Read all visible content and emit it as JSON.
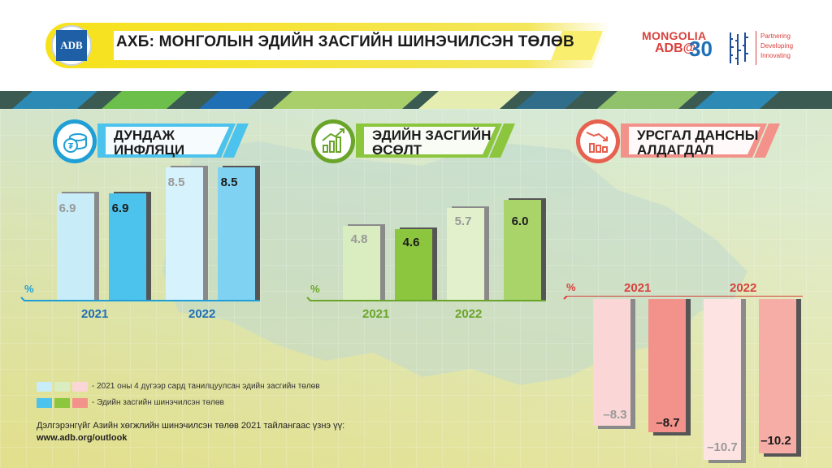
{
  "header": {
    "logo_text": "ADB",
    "title": "АХБ: МОНГОЛЫН ЭДИЙН ЗАСГИЙН ШИНЭЧИЛСЭН ТӨЛӨВ",
    "brand_mongolia": "MONGOLIA",
    "brand_adb": "ADB@",
    "brand_30": "30",
    "brand_tagline": [
      "Partnering",
      "Developing",
      "Innovating"
    ]
  },
  "sections": {
    "inflation": {
      "title_line1": "ДУНДАЖ",
      "title_line2": "ИНФЛЯЦИ",
      "icon": "coins-icon",
      "unit": "%",
      "years": [
        "2021",
        "2022"
      ],
      "values": [
        {
          "year": "2021",
          "april": "6.9",
          "updated": "6.9"
        },
        {
          "year": "2022",
          "april": "8.5",
          "updated": "8.5"
        }
      ]
    },
    "growth": {
      "title_line1": "ЭДИЙН ЗАСГИЙН",
      "title_line2": "ӨСӨЛТ",
      "icon": "growth-chart-icon",
      "unit": "%",
      "years": [
        "2021",
        "2022"
      ],
      "values": [
        {
          "year": "2021",
          "april": "4.8",
          "updated": "4.6"
        },
        {
          "year": "2022",
          "april": "5.7",
          "updated": "6.0"
        }
      ]
    },
    "deficit": {
      "title_line1": "УРСГАЛ ДАНСНЫ",
      "title_line2": "АЛДАГДАЛ",
      "icon": "declining-chart-icon",
      "unit": "%",
      "years": [
        "2021",
        "2022"
      ],
      "values": [
        {
          "year": "2021",
          "april": "–8.3",
          "updated": "–8.7"
        },
        {
          "year": "2022",
          "april": "–10.7",
          "updated": "–10.2"
        }
      ]
    }
  },
  "legend": {
    "april_label": "- 2021 оны 4 дүгээр сард танилцуулсан эдийн засгийн төлөв",
    "updated_label": "- Эдийн засгийн шинэчилсэн төлөв"
  },
  "footer": {
    "more_info": "Дэлгэрэнгүйг Азийн хөгжлийн шинэчилсэн төлөв 2021 тайлангаас үзнэ үү:",
    "url": "www.adb.org/outlook"
  },
  "colors": {
    "inflation_light": "#c9ecf9",
    "inflation_dark": "#4cc3ec",
    "growth_light": "#d9edc0",
    "growth_dark": "#8cc63f",
    "deficit_light": "#fad6d6",
    "deficit_dark": "#f3928a",
    "accent_red": "#d9413d",
    "accent_blue": "#1f9fd6",
    "accent_green": "#6aa52a",
    "banner_yellow": "#f2e21f"
  }
}
